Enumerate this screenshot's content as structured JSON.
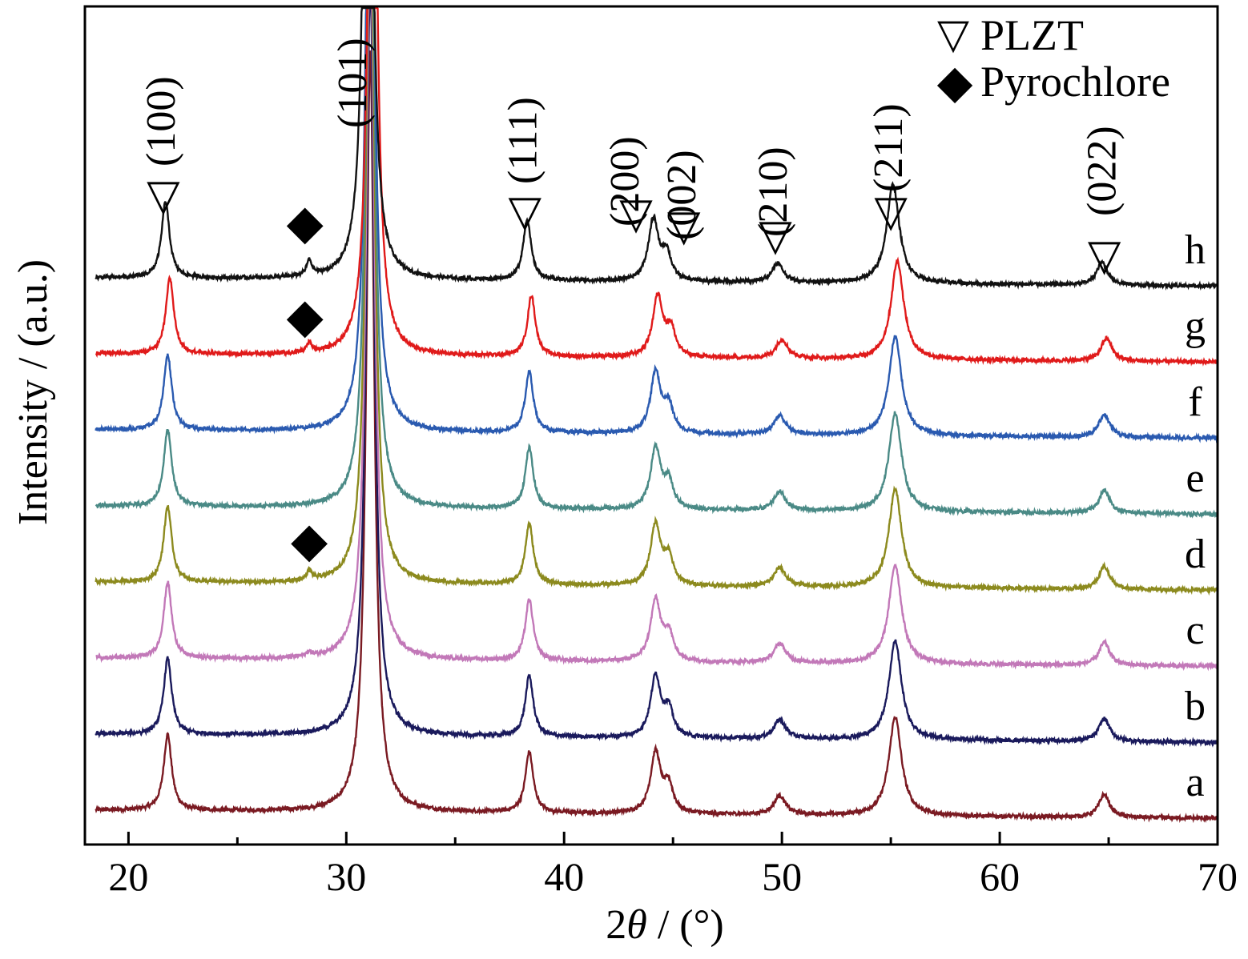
{
  "chart_data": {
    "type": "line",
    "xlabel_parts": [
      "2",
      "θ",
      " / (°)"
    ],
    "ylabel": "Intensity / (a.u.)",
    "xlim": [
      18,
      70
    ],
    "xticks": [
      20,
      30,
      40,
      50,
      60,
      70
    ],
    "minor_xticks": [
      25,
      35,
      45,
      55,
      65
    ],
    "grid": false,
    "legend_placement": "top-right",
    "legend": [
      {
        "marker": "▽",
        "text": "PLZT"
      },
      {
        "marker": "◆",
        "text": "Pyrochlore"
      }
    ],
    "peaks": [
      {
        "two_theta": 21.8,
        "width": 0.22,
        "height": 1.0
      },
      {
        "two_theta": 31.1,
        "width": 0.22,
        "height": 10.0
      },
      {
        "two_theta": 38.4,
        "width": 0.22,
        "height": 0.8
      },
      {
        "two_theta": 44.2,
        "width": 0.28,
        "height": 0.8
      },
      {
        "two_theta": 44.8,
        "width": 0.25,
        "height": 0.35
      },
      {
        "two_theta": 49.9,
        "width": 0.32,
        "height": 0.25
      },
      {
        "two_theta": 55.2,
        "width": 0.35,
        "height": 1.3
      },
      {
        "two_theta": 64.8,
        "width": 0.3,
        "height": 0.3
      }
    ],
    "series": [
      {
        "name": "a",
        "color": "#7a1a22",
        "offset": 0.0,
        "shift": 0.0,
        "pyrochlore": 0.0
      },
      {
        "name": "b",
        "color": "#1a1a5c",
        "offset": 1.0,
        "shift": 0.0,
        "pyrochlore": 0.0
      },
      {
        "name": "c",
        "color": "#c278b8",
        "offset": 2.0,
        "shift": 0.0,
        "pyrochlore": 0.05
      },
      {
        "name": "d",
        "color": "#8c8a1e",
        "offset": 3.0,
        "shift": 0.0,
        "pyrochlore": 0.12
      },
      {
        "name": "e",
        "color": "#4a8a86",
        "offset": 4.0,
        "shift": 0.0,
        "pyrochlore": 0.0
      },
      {
        "name": "f",
        "color": "#2a5ab0",
        "offset": 5.0,
        "shift": 0.0,
        "pyrochlore": 0.0
      },
      {
        "name": "g",
        "color": "#e01a1a",
        "offset": 6.0,
        "shift": 0.1,
        "pyrochlore": 0.12
      },
      {
        "name": "h",
        "color": "#111111",
        "offset": 7.0,
        "shift": -0.1,
        "pyrochlore": 0.2
      }
    ],
    "pyrochlore_peak": 28.3,
    "annotations": [
      {
        "label": "(100)",
        "two_theta": 21.6
      },
      {
        "label": "(101)",
        "two_theta": 30.4
      },
      {
        "label": "(111)",
        "two_theta": 38.2
      },
      {
        "label": "(200)",
        "two_theta": 42.9
      },
      {
        "label": "(002)",
        "two_theta": 45.5
      },
      {
        "label": "(210)",
        "two_theta": 49.7
      },
      {
        "label": "(211)",
        "two_theta": 55.0
      },
      {
        "label": "(022)",
        "two_theta": 64.8
      }
    ],
    "plzt_marker": "▽",
    "pyrochlore_marker": "◆"
  }
}
